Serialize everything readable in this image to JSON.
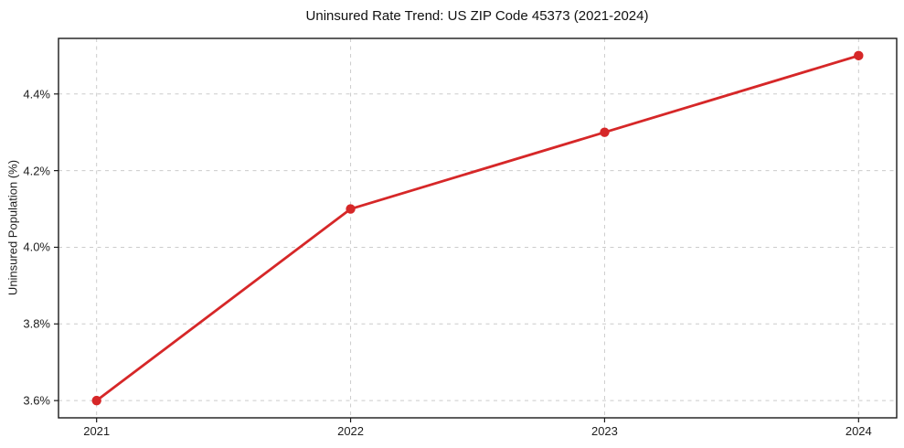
{
  "chart_data": {
    "type": "line",
    "title": "Uninsured Rate Trend: US ZIP Code 45373 (2021-2024)",
    "xlabel": "",
    "ylabel": "Uninsured Population (%)",
    "x": [
      2021,
      2022,
      2023,
      2024
    ],
    "series": [
      {
        "name": "Uninsured Population (%)",
        "values": [
          3.6,
          4.1,
          4.3,
          4.5
        ],
        "color": "#d62728",
        "marker": "circle",
        "marker_radius": 5.2,
        "line_width": 2.8
      }
    ],
    "xticks": {
      "values": [
        2021,
        2022,
        2023,
        2024
      ],
      "labels": [
        "2021",
        "2022",
        "2023",
        "2024"
      ]
    },
    "yticks": {
      "values": [
        3.6,
        3.8,
        4.0,
        4.2,
        4.4
      ],
      "labels": [
        "3.6%",
        "3.8%",
        "4.0%",
        "4.2%",
        "4.4%"
      ]
    },
    "xlim": [
      2020.85,
      2024.15
    ],
    "ylim": [
      3.555,
      4.545
    ],
    "grid": true,
    "grid_style": "dashed",
    "grid_color": "#cccccc",
    "frame_color": "#1a1a1a",
    "background": "#ffffff",
    "legend": "none"
  }
}
